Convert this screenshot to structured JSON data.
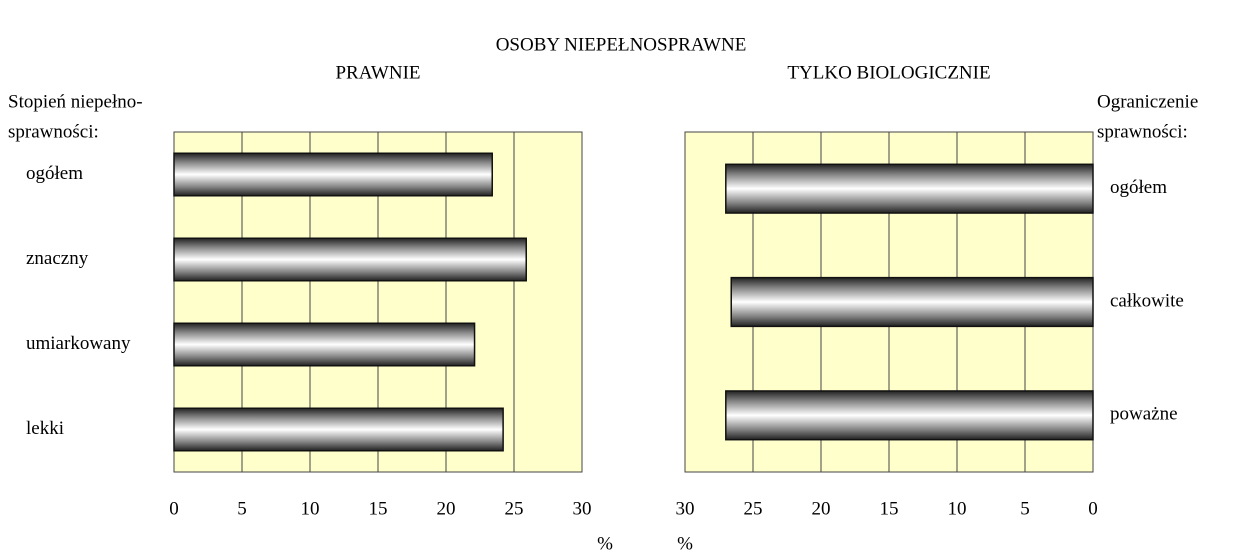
{
  "title": "OSOBY NIEPEŁNOSPRAWNE",
  "chart_data": [
    {
      "type": "bar",
      "orientation": "horizontal",
      "title": "PRAWNIE",
      "category_label": [
        "Stopień niepełno-",
        "sprawności:"
      ],
      "label_side": "left",
      "categories": [
        "ogółem",
        "znaczny",
        "umiarkowany",
        "lekki"
      ],
      "values": [
        23.4,
        25.9,
        22.1,
        24.2
      ],
      "xlim": [
        0,
        30
      ],
      "xticks": [
        0,
        5,
        10,
        15,
        20,
        25,
        30
      ],
      "x_reversed": false,
      "xlabel": "%",
      "grid": true,
      "color": "#808080",
      "background": "#ffffcc"
    },
    {
      "type": "bar",
      "orientation": "horizontal",
      "title": "TYLKO BIOLOGICZNIE",
      "category_label": [
        "Ograniczenie",
        "sprawności:"
      ],
      "label_side": "right",
      "categories": [
        "ogółem",
        "całkowite",
        "poważne"
      ],
      "values": [
        27,
        26.6,
        27
      ],
      "xlim": [
        0,
        30
      ],
      "xticks": [
        0,
        5,
        10,
        15,
        20,
        25,
        30
      ],
      "x_reversed": true,
      "xlabel": "%",
      "grid": true,
      "color": "#808080",
      "background": "#ffffcc"
    }
  ]
}
